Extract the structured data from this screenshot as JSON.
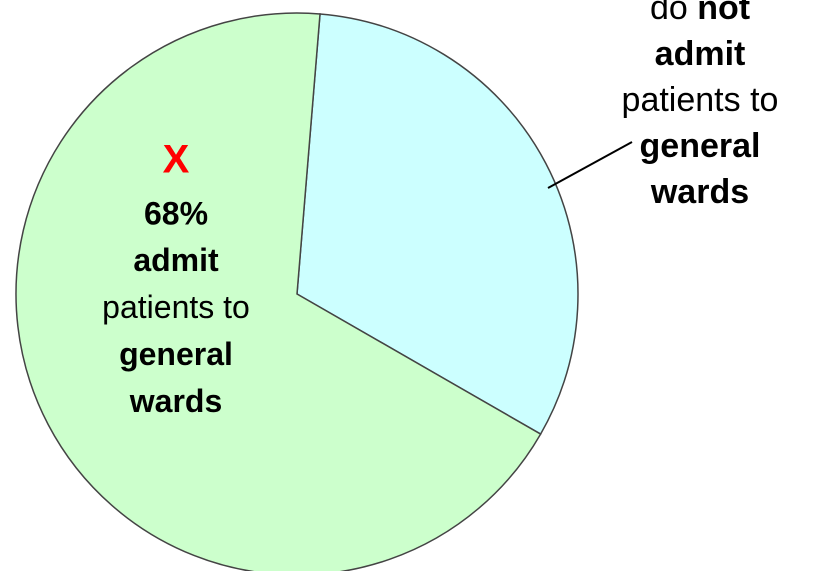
{
  "chart_data": {
    "type": "pie",
    "slices": [
      {
        "value": 32,
        "color": "#ccffff",
        "label": [
          [
            [
              "do ",
              false
            ],
            [
              "not",
              true
            ]
          ],
          [
            [
              "admit",
              true
            ]
          ],
          [
            [
              "patients to",
              false
            ]
          ],
          [
            [
              "general",
              true
            ]
          ],
          [
            [
              "wards",
              true
            ]
          ]
        ]
      },
      {
        "value": 68,
        "value_label": "68%",
        "color": "#ccffcc",
        "marker": "X",
        "marker_color": "#ff0000",
        "label": [
          [
            [
              "admit",
              true
            ]
          ],
          [
            [
              "patients to",
              false
            ]
          ],
          [
            [
              "general",
              true
            ]
          ],
          [
            [
              "wards",
              true
            ]
          ]
        ]
      }
    ]
  }
}
